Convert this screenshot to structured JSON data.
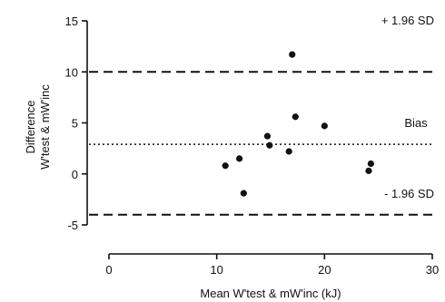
{
  "chart_data": {
    "type": "scatter",
    "title": "",
    "xlabel": "Mean W'test & mW'inc (kJ)",
    "ylabel_lines": [
      "Difference",
      "W'test & mW'inc"
    ],
    "xlim": [
      0,
      30
    ],
    "ylim": [
      -5,
      15
    ],
    "xticks": [
      0,
      10,
      20,
      30
    ],
    "yticks": [
      -5,
      0,
      5,
      10,
      15
    ],
    "grid": false,
    "points": [
      {
        "x": 10.8,
        "y": 0.8
      },
      {
        "x": 12.1,
        "y": 1.5
      },
      {
        "x": 12.5,
        "y": -1.9
      },
      {
        "x": 14.7,
        "y": 3.7
      },
      {
        "x": 14.9,
        "y": 2.8
      },
      {
        "x": 16.7,
        "y": 2.2
      },
      {
        "x": 17.0,
        "y": 11.7
      },
      {
        "x": 17.3,
        "y": 5.6
      },
      {
        "x": 20.0,
        "y": 4.7
      },
      {
        "x": 24.1,
        "y": 0.3
      },
      {
        "x": 24.3,
        "y": 1.0
      }
    ],
    "reference_lines": [
      {
        "name": "upper-loa",
        "y": 10.0,
        "style": "dashed",
        "label": "+ 1.96 SD"
      },
      {
        "name": "bias",
        "y": 2.9,
        "style": "dotted",
        "label": "Bias"
      },
      {
        "name": "lower-loa",
        "y": -4.0,
        "style": "dashed",
        "label": "- 1.96 SD"
      }
    ]
  }
}
